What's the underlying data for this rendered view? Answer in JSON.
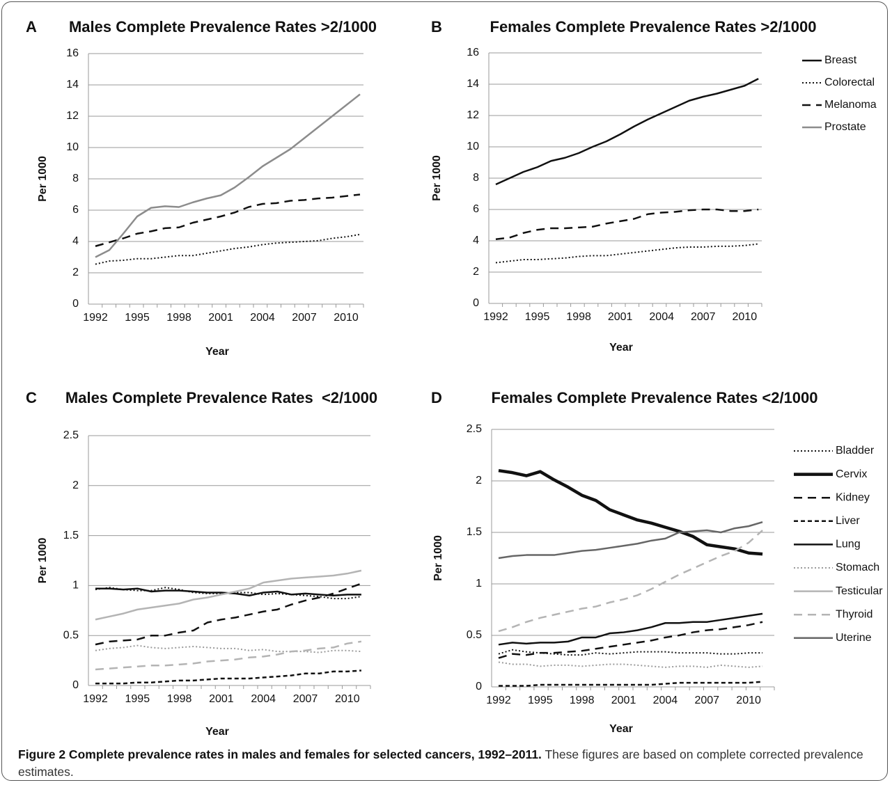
{
  "chart_data": [
    {
      "type": "line",
      "panel": "A",
      "title": "Males Complete Prevalence Rates >2/1000",
      "y_label": "Per 1000",
      "x_label": "Year",
      "categories": [
        "1992",
        null,
        null,
        "1995",
        null,
        null,
        "1998",
        null,
        null,
        "2001",
        null,
        null,
        "2004",
        null,
        null,
        "2007",
        null,
        null,
        "2010",
        null
      ],
      "ylim": [
        0,
        16
      ],
      "yticks": [
        0,
        2,
        4,
        6,
        8,
        10,
        12,
        14,
        16
      ],
      "grid": true,
      "series": [
        {
          "name": "Colorectal",
          "color": "#111111",
          "style": "dotted",
          "values": [
            2.55,
            2.75,
            2.8,
            2.9,
            2.9,
            3.0,
            3.1,
            3.1,
            3.25,
            3.4,
            3.55,
            3.65,
            3.8,
            3.9,
            3.95,
            4.0,
            4.05,
            4.2,
            4.3,
            4.45
          ]
        },
        {
          "name": "Melanoma",
          "color": "#111111",
          "style": "dashed",
          "values": [
            3.7,
            3.95,
            4.2,
            4.5,
            4.65,
            4.85,
            4.9,
            5.2,
            5.4,
            5.6,
            5.85,
            6.2,
            6.4,
            6.45,
            6.6,
            6.65,
            6.75,
            6.8,
            6.9,
            7.0
          ]
        },
        {
          "name": "Prostate",
          "color": "#8c8c8c",
          "style": "solid",
          "values": [
            3.0,
            3.45,
            4.5,
            5.6,
            6.15,
            6.25,
            6.2,
            6.5,
            6.75,
            6.95,
            7.45,
            8.1,
            8.8,
            9.35,
            9.9,
            10.6,
            11.3,
            12.0,
            12.7,
            13.4
          ]
        }
      ]
    },
    {
      "type": "line",
      "panel": "B",
      "title": "Females Complete Prevalence Rates >2/1000",
      "y_label": "Per 1000",
      "x_label": "Year",
      "categories": [
        "1992",
        null,
        null,
        "1995",
        null,
        null,
        "1998",
        null,
        null,
        "2001",
        null,
        null,
        "2004",
        null,
        null,
        "2007",
        null,
        null,
        "2010",
        null
      ],
      "ylim": [
        0,
        16
      ],
      "yticks": [
        0,
        2,
        4,
        6,
        8,
        10,
        12,
        14,
        16
      ],
      "grid": true,
      "legend": true,
      "series": [
        {
          "name": "Breast",
          "color": "#111111",
          "style": "solid",
          "values": [
            7.6,
            8.0,
            8.4,
            8.7,
            9.1,
            9.3,
            9.6,
            10.0,
            10.35,
            10.8,
            11.3,
            11.75,
            12.15,
            12.55,
            12.95,
            13.2,
            13.4,
            13.65,
            13.9,
            14.35
          ]
        },
        {
          "name": "Colorectal",
          "color": "#111111",
          "style": "dotted",
          "values": [
            2.6,
            2.7,
            2.8,
            2.8,
            2.85,
            2.9,
            3.0,
            3.05,
            3.05,
            3.15,
            3.25,
            3.35,
            3.45,
            3.55,
            3.6,
            3.6,
            3.65,
            3.65,
            3.7,
            3.8
          ]
        },
        {
          "name": "Melanoma",
          "color": "#111111",
          "style": "dashed",
          "values": [
            4.1,
            4.2,
            4.5,
            4.7,
            4.8,
            4.8,
            4.85,
            4.9,
            5.1,
            5.25,
            5.4,
            5.7,
            5.8,
            5.85,
            5.95,
            6.0,
            6.0,
            5.9,
            5.9,
            6.0
          ]
        }
      ]
    },
    {
      "type": "line",
      "panel": "C",
      "title": "Males Complete Prevalence Rates  <2/1000",
      "y_label": "Per 1000",
      "x_label": "Year",
      "categories": [
        "1992",
        null,
        null,
        "1995",
        null,
        null,
        "1998",
        null,
        null,
        "2001",
        null,
        null,
        "2004",
        null,
        null,
        "2007",
        null,
        null,
        "2010",
        null
      ],
      "ylim": [
        0,
        2.5
      ],
      "yticks": [
        0,
        0.5,
        1,
        1.5,
        2,
        2.5
      ],
      "grid": true,
      "series": [
        {
          "name": "Bladder",
          "color": "#111111",
          "style": "dotted",
          "values": [
            0.96,
            0.98,
            0.96,
            0.95,
            0.95,
            0.98,
            0.96,
            0.93,
            0.92,
            0.92,
            0.93,
            0.93,
            0.91,
            0.92,
            0.91,
            0.9,
            0.89,
            0.87,
            0.87,
            0.89
          ]
        },
        {
          "name": "Kidney",
          "color": "#111111",
          "style": "dashed",
          "values": [
            0.41,
            0.44,
            0.45,
            0.46,
            0.5,
            0.5,
            0.53,
            0.55,
            0.63,
            0.66,
            0.68,
            0.71,
            0.74,
            0.76,
            0.81,
            0.85,
            0.88,
            0.92,
            0.97,
            1.02
          ]
        },
        {
          "name": "Liver",
          "color": "#111111",
          "style": "short-dashed",
          "values": [
            0.02,
            0.02,
            0.02,
            0.03,
            0.03,
            0.04,
            0.05,
            0.05,
            0.06,
            0.07,
            0.07,
            0.07,
            0.08,
            0.09,
            0.1,
            0.12,
            0.12,
            0.14,
            0.14,
            0.15
          ]
        },
        {
          "name": "Lung",
          "color": "#111111",
          "style": "solid",
          "values": [
            0.97,
            0.97,
            0.96,
            0.97,
            0.94,
            0.95,
            0.95,
            0.94,
            0.93,
            0.93,
            0.92,
            0.9,
            0.93,
            0.94,
            0.91,
            0.92,
            0.91,
            0.9,
            0.91,
            0.91
          ]
        },
        {
          "name": "Stomach",
          "color": "#9a9a9a",
          "style": "dotted",
          "values": [
            0.35,
            0.37,
            0.38,
            0.4,
            0.38,
            0.37,
            0.38,
            0.39,
            0.38,
            0.37,
            0.37,
            0.35,
            0.36,
            0.34,
            0.34,
            0.34,
            0.33,
            0.35,
            0.35,
            0.34
          ]
        },
        {
          "name": "Testicular",
          "color": "#b4b4b4",
          "style": "solid",
          "values": [
            0.66,
            0.69,
            0.72,
            0.76,
            0.78,
            0.8,
            0.82,
            0.86,
            0.88,
            0.91,
            0.94,
            0.97,
            1.03,
            1.05,
            1.07,
            1.08,
            1.09,
            1.1,
            1.12,
            1.15
          ]
        },
        {
          "name": "Thyroid",
          "color": "#b4b4b4",
          "style": "dashed",
          "values": [
            0.16,
            0.17,
            0.18,
            0.19,
            0.2,
            0.2,
            0.21,
            0.22,
            0.24,
            0.25,
            0.26,
            0.28,
            0.29,
            0.31,
            0.34,
            0.35,
            0.37,
            0.38,
            0.42,
            0.44
          ]
        }
      ]
    },
    {
      "type": "line",
      "panel": "D",
      "title": "Females Complete Prevalence Rates <2/1000",
      "y_label": "Per 1000",
      "x_label": "Year",
      "categories": [
        "1992",
        null,
        null,
        "1995",
        null,
        null,
        "1998",
        null,
        null,
        "2001",
        null,
        null,
        "2004",
        null,
        null,
        "2007",
        null,
        null,
        "2010",
        null
      ],
      "ylim": [
        0,
        2.5
      ],
      "yticks": [
        0,
        0.5,
        1,
        1.5,
        2,
        2.5
      ],
      "grid": true,
      "legend": true,
      "series": [
        {
          "name": "Bladder",
          "color": "#111111",
          "style": "dotted",
          "values": [
            0.32,
            0.36,
            0.34,
            0.33,
            0.32,
            0.31,
            0.31,
            0.33,
            0.32,
            0.33,
            0.34,
            0.34,
            0.34,
            0.33,
            0.33,
            0.33,
            0.32,
            0.32,
            0.33,
            0.33
          ]
        },
        {
          "name": "Cervix",
          "color": "#111111",
          "style": "thick",
          "values": [
            2.1,
            2.08,
            2.05,
            2.09,
            2.01,
            1.94,
            1.86,
            1.81,
            1.72,
            1.67,
            1.62,
            1.59,
            1.55,
            1.51,
            1.46,
            1.38,
            1.36,
            1.34,
            1.3,
            1.29
          ]
        },
        {
          "name": "Kidney",
          "color": "#111111",
          "style": "dashed",
          "values": [
            0.28,
            0.32,
            0.31,
            0.33,
            0.33,
            0.34,
            0.35,
            0.37,
            0.39,
            0.41,
            0.43,
            0.45,
            0.48,
            0.5,
            0.53,
            0.55,
            0.56,
            0.58,
            0.6,
            0.63
          ]
        },
        {
          "name": "Liver",
          "color": "#111111",
          "style": "short-dashed",
          "values": [
            0.01,
            0.01,
            0.01,
            0.02,
            0.02,
            0.02,
            0.02,
            0.02,
            0.02,
            0.02,
            0.02,
            0.02,
            0.03,
            0.04,
            0.04,
            0.04,
            0.04,
            0.04,
            0.04,
            0.05
          ]
        },
        {
          "name": "Lung",
          "color": "#111111",
          "style": "solid",
          "values": [
            0.41,
            0.43,
            0.42,
            0.43,
            0.43,
            0.44,
            0.48,
            0.48,
            0.52,
            0.53,
            0.55,
            0.58,
            0.62,
            0.62,
            0.63,
            0.63,
            0.65,
            0.67,
            0.69,
            0.71
          ]
        },
        {
          "name": "Stomach",
          "color": "#9a9a9a",
          "style": "dotted",
          "values": [
            0.24,
            0.22,
            0.22,
            0.2,
            0.21,
            0.21,
            0.2,
            0.21,
            0.22,
            0.22,
            0.21,
            0.2,
            0.19,
            0.2,
            0.2,
            0.19,
            0.21,
            0.2,
            0.19,
            0.2
          ]
        },
        {
          "name": "Thyroid",
          "color": "#b4b4b4",
          "style": "dashed",
          "values": [
            0.54,
            0.58,
            0.63,
            0.67,
            0.7,
            0.73,
            0.76,
            0.78,
            0.82,
            0.85,
            0.89,
            0.95,
            1.02,
            1.09,
            1.15,
            1.21,
            1.27,
            1.32,
            1.4,
            1.52
          ]
        },
        {
          "name": "Uterine",
          "color": "#666666",
          "style": "solid",
          "values": [
            1.25,
            1.27,
            1.28,
            1.28,
            1.28,
            1.3,
            1.32,
            1.33,
            1.35,
            1.37,
            1.39,
            1.42,
            1.44,
            1.5,
            1.51,
            1.52,
            1.5,
            1.54,
            1.56,
            1.6
          ]
        }
      ]
    }
  ],
  "caption": {
    "bold": "Figure 2 Complete prevalence rates in males and females for selected cancers, 1992–2011.",
    "text": " These figures are based on complete corrected prevalence estimates."
  }
}
